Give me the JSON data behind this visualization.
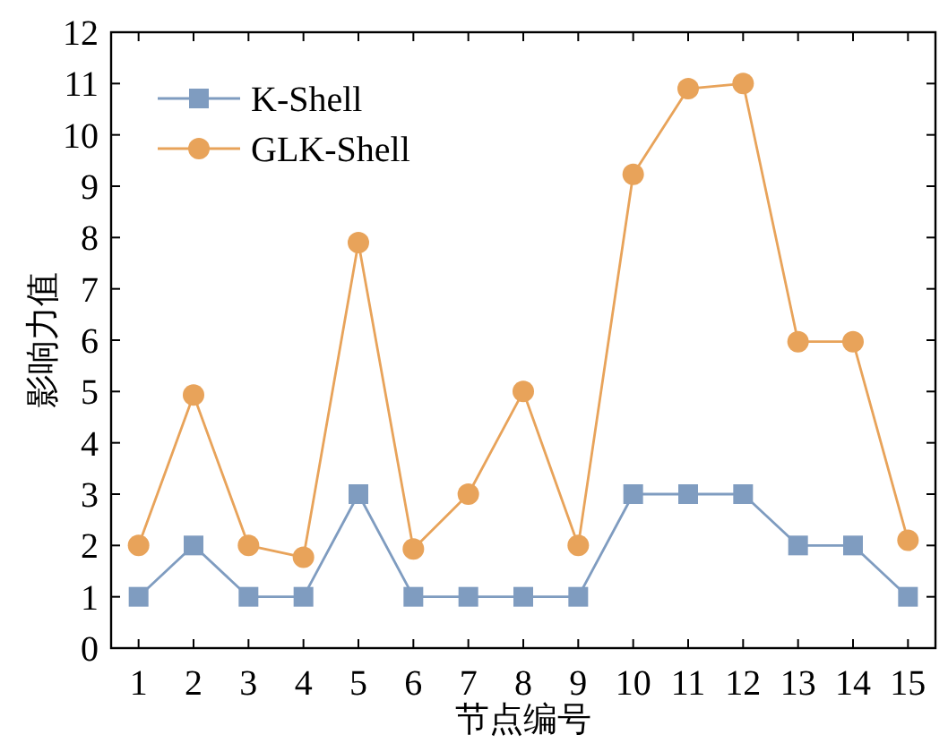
{
  "chart_data": {
    "type": "line",
    "xlabel": "节点编号",
    "ylabel": "影响力值",
    "x": [
      1,
      2,
      3,
      4,
      5,
      6,
      7,
      8,
      9,
      10,
      11,
      12,
      13,
      14,
      15
    ],
    "xlim": [
      0.5,
      15.5
    ],
    "xticks": [
      1,
      2,
      3,
      4,
      5,
      6,
      7,
      8,
      9,
      10,
      11,
      12,
      13,
      14,
      15
    ],
    "ylim": [
      0,
      12
    ],
    "yticks": [
      0,
      1,
      2,
      3,
      4,
      5,
      6,
      7,
      8,
      9,
      10,
      11,
      12
    ],
    "grid": false,
    "legend": "top left",
    "series": [
      {
        "name": "K-Shell",
        "color": "#7f9cc0",
        "marker": "square",
        "values": [
          1,
          2,
          1,
          1,
          3,
          1,
          1,
          1,
          1,
          3,
          3,
          3,
          2,
          2,
          1
        ]
      },
      {
        "name": "GLK-Shell",
        "color": "#e8a35a",
        "marker": "circle",
        "values": [
          2,
          4.93,
          2,
          1.77,
          7.9,
          1.93,
          3,
          5,
          2,
          9.23,
          10.9,
          11,
          5.97,
          5.97,
          2.1
        ]
      }
    ]
  }
}
